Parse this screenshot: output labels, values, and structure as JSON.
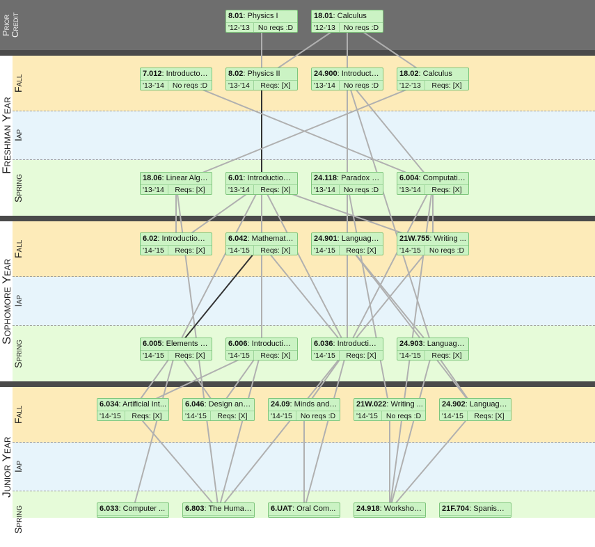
{
  "labels": {
    "prior_credit": [
      "Prior",
      "Credit"
    ],
    "years": [
      "Freshman Year",
      "Sophomore Year",
      "Junior Year"
    ],
    "terms": {
      "fall": "Fall",
      "iap": "Iap",
      "spring": "Spring"
    }
  },
  "courses": [
    {
      "id": "c801",
      "num": "8.01",
      "title": "Physics I",
      "year": "'12-'13",
      "reqs": "No reqs :D"
    },
    {
      "id": "c1801",
      "num": "18.01",
      "title": "Calculus",
      "year": "'12-'13",
      "reqs": "No reqs :D"
    },
    {
      "id": "c7012",
      "num": "7.012",
      "title": "Introductory...",
      "year": "'13-'14",
      "reqs": "No reqs :D"
    },
    {
      "id": "c802",
      "num": "8.02",
      "title": "Physics II",
      "year": "'13-'14",
      "reqs": "Reqs: [X]"
    },
    {
      "id": "c24900",
      "num": "24.900",
      "title": "Introductio...",
      "year": "'13-'14",
      "reqs": "No reqs :D"
    },
    {
      "id": "c1802",
      "num": "18.02",
      "title": "Calculus",
      "year": "'12-'13",
      "reqs": "Reqs: [X]"
    },
    {
      "id": "c1806",
      "num": "18.06",
      "title": "Linear Alge...",
      "year": "'13-'14",
      "reqs": "Reqs: [X]"
    },
    {
      "id": "c601",
      "num": "6.01",
      "title": "Introduction t...",
      "year": "'13-'14",
      "reqs": "Reqs: [X]"
    },
    {
      "id": "c24118",
      "num": "24.118",
      "title": "Paradox a...",
      "year": "'13-'14",
      "reqs": "No reqs :D"
    },
    {
      "id": "c6004",
      "num": "6.004",
      "title": "Computatio...",
      "year": "'13-'14",
      "reqs": "Reqs: [X]"
    },
    {
      "id": "c602",
      "num": "6.02",
      "title": "Introduction t...",
      "year": "'14-'15",
      "reqs": "Reqs: [X]"
    },
    {
      "id": "c6042",
      "num": "6.042",
      "title": "Mathematic...",
      "year": "'14-'15",
      "reqs": "Reqs: [X]"
    },
    {
      "id": "c24901",
      "num": "24.901",
      "title": "Language...",
      "year": "'14-'15",
      "reqs": "Reqs: [X]"
    },
    {
      "id": "c21w755",
      "num": "21W.755",
      "title": "Writing ...",
      "year": "'14-'15",
      "reqs": "No reqs :D"
    },
    {
      "id": "c6005",
      "num": "6.005",
      "title": "Elements of...",
      "year": "'14-'15",
      "reqs": "Reqs: [X]"
    },
    {
      "id": "c6006",
      "num": "6.006",
      "title": "Introduction...",
      "year": "'14-'15",
      "reqs": "Reqs: [X]"
    },
    {
      "id": "c6036",
      "num": "6.036",
      "title": "Introduction...",
      "year": "'14-'15",
      "reqs": "Reqs: [X]"
    },
    {
      "id": "c24903",
      "num": "24.903",
      "title": "Language...",
      "year": "'14-'15",
      "reqs": "Reqs: [X]"
    },
    {
      "id": "c6034",
      "num": "6.034",
      "title": "Artificial Int...",
      "year": "'14-'15",
      "reqs": "Reqs: [X]"
    },
    {
      "id": "c6046",
      "num": "6.046",
      "title": "Design and...",
      "year": "'14-'15",
      "reqs": "Reqs: [X]"
    },
    {
      "id": "c2409",
      "num": "24.09",
      "title": "Minds and ...",
      "year": "'14-'15",
      "reqs": "No reqs :D"
    },
    {
      "id": "c21w022",
      "num": "21W.022",
      "title": "Writing ...",
      "year": "'14-'15",
      "reqs": "No reqs :D"
    },
    {
      "id": "c24902",
      "num": "24.902",
      "title": "Language...",
      "year": "'14-'15",
      "reqs": "Reqs: [X]"
    },
    {
      "id": "c6033",
      "num": "6.033",
      "title": "Computer ...",
      "year": "",
      "reqs": ""
    },
    {
      "id": "c6803",
      "num": "6.803",
      "title": "The Human...",
      "year": "",
      "reqs": ""
    },
    {
      "id": "c6uat",
      "num": "6.UAT",
      "title": "Oral Com...",
      "year": "",
      "reqs": ""
    },
    {
      "id": "c24918",
      "num": "24.918",
      "title": "Workshop...",
      "year": "",
      "reqs": ""
    },
    {
      "id": "c21f704",
      "num": "21F.704",
      "title": "Spanish IV",
      "year": "",
      "reqs": ""
    }
  ],
  "colors": {
    "fall": "#fdebb9",
    "iap": "#e7f4fb",
    "spring": "#e6fbd9",
    "prior": "#6e6e6e",
    "separator": "#4a4a4a",
    "card": "#cbf3c4",
    "card_border": "#7ec57c",
    "edge": "#b0b0b0",
    "edge_highlight": "#333333"
  },
  "edges": [
    [
      "c801",
      "c802",
      false
    ],
    [
      "c1801",
      "c802",
      false
    ],
    [
      "c1801",
      "c24900",
      false
    ],
    [
      "c1801",
      "c1802",
      false
    ],
    [
      "c802",
      "c601",
      true
    ],
    [
      "c24900",
      "c24118",
      false
    ],
    [
      "c24900",
      "c6004",
      false
    ],
    [
      "c24900",
      "c24901",
      false
    ],
    [
      "c24900",
      "c24903",
      false
    ],
    [
      "c24900",
      "c6036",
      false
    ],
    [
      "c1802",
      "c1806",
      false
    ],
    [
      "c7012",
      "c6004",
      false
    ],
    [
      "c1806",
      "c602",
      false
    ],
    [
      "c1806",
      "c6803",
      false
    ],
    [
      "c601",
      "c602",
      false
    ],
    [
      "c601",
      "c6042",
      false
    ],
    [
      "c601",
      "c6036",
      false
    ],
    [
      "c601",
      "c6006",
      false
    ],
    [
      "c601",
      "c6005",
      false
    ],
    [
      "c601",
      "c21w755",
      false
    ],
    [
      "c24118",
      "c24901",
      false
    ],
    [
      "c24118",
      "c21w022",
      false
    ],
    [
      "c6004",
      "c21w755",
      false
    ],
    [
      "c6004",
      "c6036",
      false
    ],
    [
      "c6004",
      "c24918",
      false
    ],
    [
      "c6042",
      "c6005",
      true
    ],
    [
      "c6042",
      "c6006",
      false
    ],
    [
      "c6042",
      "c6036",
      false
    ],
    [
      "c24901",
      "c24903",
      false
    ],
    [
      "c24901",
      "c24902",
      false
    ],
    [
      "c21w755",
      "c6036",
      false
    ],
    [
      "c6005",
      "c6034",
      false
    ],
    [
      "c6005",
      "c6033",
      false
    ],
    [
      "c6005",
      "c6046",
      false
    ],
    [
      "c6006",
      "c6046",
      false
    ],
    [
      "c6006",
      "c6803",
      false
    ],
    [
      "c6006",
      "c6034",
      false
    ],
    [
      "c6036",
      "c2409",
      false
    ],
    [
      "c6036",
      "c6uat",
      false
    ],
    [
      "c6036",
      "c6803",
      false
    ],
    [
      "c24903",
      "c24918",
      false
    ],
    [
      "c24903",
      "c24902",
      false
    ],
    [
      "c6034",
      "c6803",
      false
    ],
    [
      "c2409",
      "c6uat",
      false
    ],
    [
      "c21w022",
      "c24918",
      false
    ],
    [
      "c24902",
      "c24918",
      false
    ]
  ]
}
